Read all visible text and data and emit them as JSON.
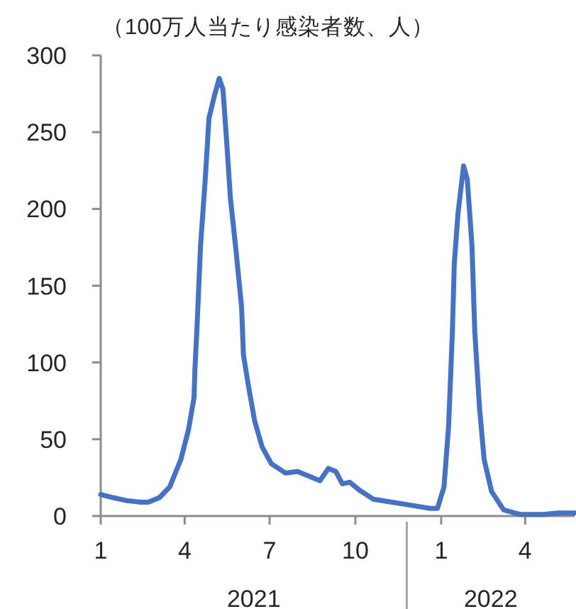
{
  "chart_data": {
    "type": "line",
    "title": "（100万人当たり感染者数、人）",
    "x": [
      "2021-01-01",
      "2021-01-14",
      "2021-01-29",
      "2021-02-13",
      "2021-02-21",
      "2021-03-05",
      "2021-03-16",
      "2021-03-28",
      "2021-04-05",
      "2021-04-11",
      "2021-04-12",
      "2021-04-14",
      "2021-04-18",
      "2021-04-23",
      "2021-04-27",
      "2021-05-03",
      "2021-05-08",
      "2021-05-12",
      "2021-05-16",
      "2021-05-20",
      "2021-05-26",
      "2021-06-01",
      "2021-06-03",
      "2021-06-08",
      "2021-06-15",
      "2021-06-23",
      "2021-07-03",
      "2021-07-18",
      "2021-07-31",
      "2021-08-12",
      "2021-08-24",
      "2021-09-02",
      "2021-09-10",
      "2021-09-17",
      "2021-09-25",
      "2021-10-05",
      "2021-10-20",
      "2021-11-09",
      "2021-11-30",
      "2021-12-20",
      "2021-12-28",
      "2022-01-04",
      "2022-01-09",
      "2022-01-13",
      "2022-01-15",
      "2022-01-19",
      "2022-01-25",
      "2022-01-29",
      "2022-02-03",
      "2022-02-06",
      "2022-02-11",
      "2022-02-16",
      "2022-02-24",
      "2022-03-09",
      "2022-03-27",
      "2022-04-21",
      "2022-05-06",
      "2022-05-24"
    ],
    "series": [
      {
        "color": "#4472c4",
        "values": [
          14,
          12,
          10,
          9,
          9,
          12,
          19,
          37,
          56,
          77,
          96,
          120,
          176,
          219,
          259,
          274,
          285,
          278,
          244,
          207,
          173,
          136,
          105,
          86,
          62,
          45,
          34,
          28,
          29,
          26,
          23,
          31,
          29,
          21,
          22,
          17,
          11,
          9,
          7,
          5,
          5,
          19,
          59,
          120,
          164,
          197,
          228,
          219,
          176,
          120,
          71,
          37,
          16,
          4,
          1,
          1,
          2,
          2
        ]
      }
    ],
    "xlim": [
      "2021-01-01",
      "2022-05-24"
    ],
    "xticks": [
      {
        "value": "2021-01-01",
        "label": "1"
      },
      {
        "value": "2021-04-01",
        "label": "4"
      },
      {
        "value": "2021-07-01",
        "label": "7"
      },
      {
        "value": "2021-10-01",
        "label": "10"
      },
      {
        "value": "2022-01-01",
        "label": "1"
      },
      {
        "value": "2022-04-01",
        "label": "4"
      }
    ],
    "ylim": [
      0,
      300
    ],
    "yticks": [
      0,
      50,
      100,
      150,
      200,
      250,
      300
    ],
    "annotations": [
      "2021",
      "2022"
    ],
    "grid": false
  }
}
